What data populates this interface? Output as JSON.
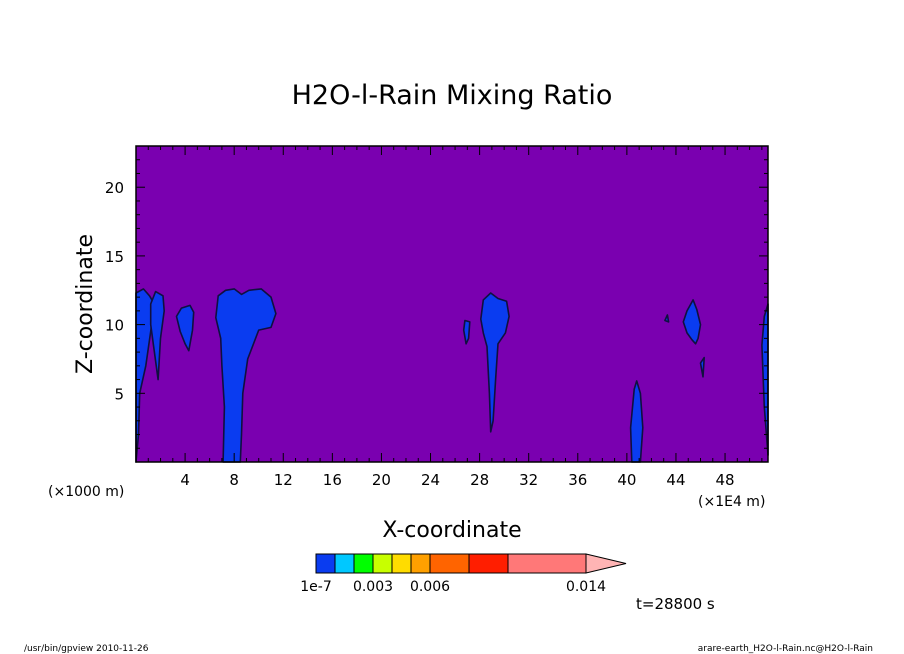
{
  "chart_data": {
    "type": "heatmap",
    "title": "H2O-l-Rain Mixing Ratio",
    "xlabel": "X-coordinate",
    "ylabel": "Z-coordinate",
    "x_unit_left": "(×1000 m)",
    "x_unit_right": "(×1E4 m)",
    "xlim": [
      0,
      51.5
    ],
    "ylim": [
      0,
      23
    ],
    "xticks": [
      4,
      8,
      12,
      16,
      20,
      24,
      28,
      32,
      36,
      40,
      44,
      48
    ],
    "yticks": [
      5,
      10,
      15,
      20
    ],
    "background_color": "#7a00b0",
    "background_meaning": "below 1e-7",
    "features": [
      {
        "name": "plume-1",
        "shape": [
          [
            0,
            0
          ],
          [
            0,
            12.3
          ],
          [
            0.6,
            12.6
          ],
          [
            1.1,
            12.1
          ],
          [
            1.5,
            11.5
          ],
          [
            1.2,
            9.5
          ],
          [
            0.8,
            7
          ],
          [
            0.3,
            5
          ],
          [
            0.2,
            2
          ]
        ],
        "fill": "#0a3cf0"
      },
      {
        "name": "plume-2",
        "shape": [
          [
            1.2,
            11.5
          ],
          [
            1.6,
            12.4
          ],
          [
            2.2,
            12.1
          ],
          [
            2.3,
            11
          ],
          [
            2,
            9
          ],
          [
            1.8,
            6
          ],
          [
            1.5,
            8
          ],
          [
            1.2,
            10
          ]
        ],
        "fill": "#0a3cf0"
      },
      {
        "name": "plume-3",
        "shape": [
          [
            3.3,
            10.6
          ],
          [
            3.7,
            11.2
          ],
          [
            4.4,
            11.4
          ],
          [
            4.7,
            10.9
          ],
          [
            4.6,
            9.6
          ],
          [
            4.3,
            8.1
          ],
          [
            4,
            8.6
          ],
          [
            3.6,
            9.5
          ]
        ],
        "fill": "#0a3cf0"
      },
      {
        "name": "plume-4",
        "shape": [
          [
            7.1,
            0
          ],
          [
            7.2,
            4
          ],
          [
            7,
            7
          ],
          [
            6.9,
            9
          ],
          [
            6.5,
            10.5
          ],
          [
            6.7,
            12.1
          ],
          [
            7.3,
            12.5
          ],
          [
            8,
            12.6
          ],
          [
            8.6,
            12.2
          ],
          [
            9.2,
            12.5
          ],
          [
            10.2,
            12.6
          ],
          [
            11,
            12
          ],
          [
            11.4,
            10.8
          ],
          [
            11,
            9.8
          ],
          [
            10,
            9.6
          ],
          [
            9.1,
            7.5
          ],
          [
            8.7,
            5
          ],
          [
            8.6,
            2
          ],
          [
            8.5,
            0
          ]
        ],
        "fill": "#0a3cf0"
      },
      {
        "name": "plume-5",
        "shape": [
          [
            26.8,
            10.3
          ],
          [
            27.2,
            10.2
          ],
          [
            27.1,
            9
          ],
          [
            26.9,
            8.6
          ],
          [
            26.7,
            9.6
          ]
        ],
        "fill": "#0a3cf0"
      },
      {
        "name": "plume-6",
        "shape": [
          [
            28.1,
            10.4
          ],
          [
            28.3,
            11.8
          ],
          [
            28.9,
            12.3
          ],
          [
            29.5,
            11.9
          ],
          [
            30.2,
            11.7
          ],
          [
            30.4,
            10.6
          ],
          [
            30.1,
            9.4
          ],
          [
            29.5,
            8.6
          ],
          [
            29.3,
            6
          ],
          [
            29.1,
            3
          ],
          [
            28.9,
            2.2
          ],
          [
            28.8,
            5
          ],
          [
            28.6,
            8.4
          ],
          [
            28.3,
            9.4
          ]
        ],
        "fill": "#0a3cf0"
      },
      {
        "name": "plume-7",
        "shape": [
          [
            40.4,
            0
          ],
          [
            40.3,
            2.5
          ],
          [
            40.6,
            5.3
          ],
          [
            40.8,
            5.9
          ],
          [
            41.1,
            5
          ],
          [
            41.3,
            2.5
          ],
          [
            41.1,
            0
          ]
        ],
        "fill": "#0a3cf0"
      },
      {
        "name": "plume-8",
        "shape": [
          [
            44.6,
            10.2
          ],
          [
            44.9,
            11
          ],
          [
            45.4,
            11.8
          ],
          [
            45.7,
            11.1
          ],
          [
            46,
            10
          ],
          [
            45.8,
            9
          ],
          [
            45.6,
            8.6
          ],
          [
            45.3,
            8.9
          ],
          [
            44.9,
            9.4
          ]
        ],
        "fill": "#0a3cf0"
      },
      {
        "name": "plume-9",
        "shape": [
          [
            51.5,
            0.5
          ],
          [
            51.2,
            4
          ],
          [
            51,
            8.5
          ],
          [
            51.2,
            10.6
          ],
          [
            51.5,
            11.5
          ]
        ],
        "fill": "#0a3cf0"
      },
      {
        "name": "speck-1",
        "shape": [
          [
            43.1,
            10.3
          ],
          [
            43.3,
            10.7
          ],
          [
            43.4,
            10.2
          ]
        ],
        "fill": "#0a3cf0"
      },
      {
        "name": "speck-2",
        "shape": [
          [
            46,
            7.2
          ],
          [
            46.2,
            6.2
          ],
          [
            46.3,
            7.6
          ]
        ],
        "fill": "#0a3cf0"
      }
    ],
    "colorbar": {
      "colors": [
        "#0a3cf0",
        "#00c8ff",
        "#00ff00",
        "#c8ff00",
        "#ffdc00",
        "#ffa000",
        "#ff6400",
        "#ff1e00",
        "#ff7878",
        "#ffb4b4"
      ],
      "tick_labels": [
        "1e-7",
        "0.003",
        "0.006",
        "0.014"
      ]
    },
    "time_label": "t=28800 s"
  },
  "footer": {
    "left": "/usr/bin/gpview  2010-11-26",
    "right": "arare-earth_H2O-l-Rain.nc@H2O-l-Rain"
  }
}
